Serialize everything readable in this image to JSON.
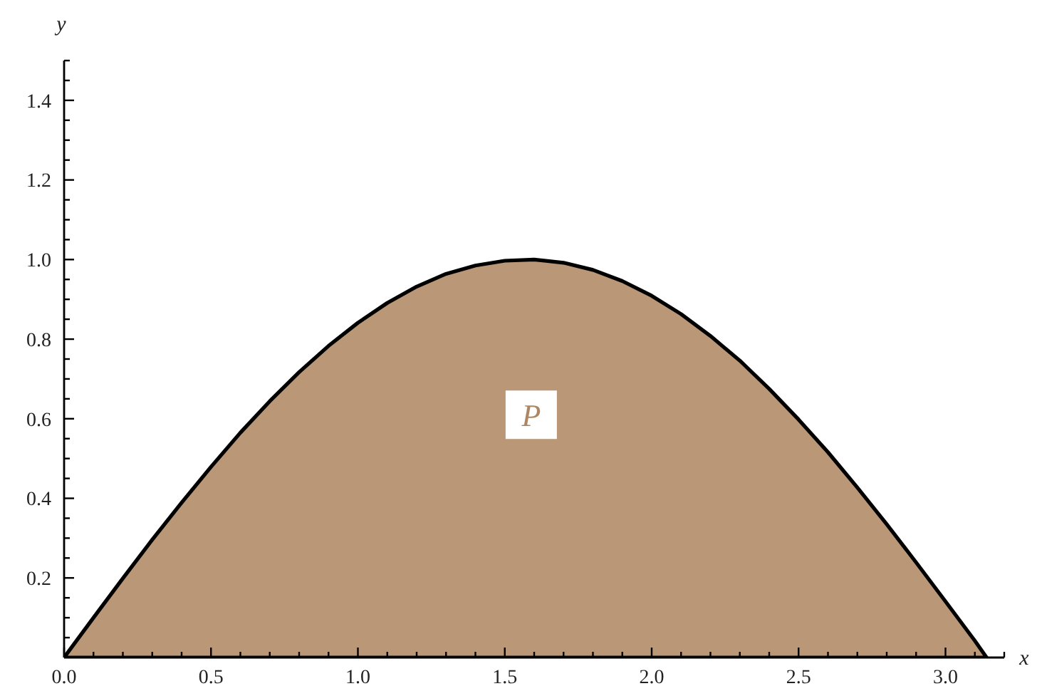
{
  "chart_data": {
    "type": "area",
    "xlabel": "x",
    "ylabel": "y",
    "x": [
      0,
      0.1,
      0.2,
      0.3,
      0.4,
      0.5,
      0.6,
      0.7,
      0.8,
      0.9,
      1.0,
      1.1,
      1.2,
      1.3,
      1.4,
      1.5,
      1.6,
      1.7,
      1.8,
      1.9,
      2.0,
      2.1,
      2.2,
      2.3,
      2.4,
      2.5,
      2.6,
      2.7,
      2.8,
      2.9,
      3.0,
      3.1,
      3.14
    ],
    "series": [
      {
        "color": "#b99777",
        "values": [
          0,
          0.1,
          0.199,
          0.296,
          0.389,
          0.479,
          0.565,
          0.644,
          0.717,
          0.783,
          0.841,
          0.891,
          0.932,
          0.964,
          0.985,
          0.997,
          1.0,
          0.992,
          0.974,
          0.946,
          0.909,
          0.863,
          0.808,
          0.746,
          0.675,
          0.598,
          0.516,
          0.427,
          0.335,
          0.239,
          0.141,
          0.042,
          0
        ]
      }
    ],
    "xlim": [
      0,
      3.2
    ],
    "ylim": [
      0,
      1.5
    ],
    "xticks": [
      {
        "value": 0,
        "label": "0.0"
      },
      {
        "value": 0.1,
        "label": null
      },
      {
        "value": 0.2,
        "label": null
      },
      {
        "value": 0.3,
        "label": null
      },
      {
        "value": 0.4,
        "label": null
      },
      {
        "value": 0.5,
        "label": "0.5"
      },
      {
        "value": 0.6,
        "label": null
      },
      {
        "value": 0.7,
        "label": null
      },
      {
        "value": 0.8,
        "label": null
      },
      {
        "value": 0.9,
        "label": null
      },
      {
        "value": 1.0,
        "label": "1.0"
      },
      {
        "value": 1.1,
        "label": null
      },
      {
        "value": 1.2,
        "label": null
      },
      {
        "value": 1.3,
        "label": null
      },
      {
        "value": 1.4,
        "label": null
      },
      {
        "value": 1.5,
        "label": "1.5"
      },
      {
        "value": 1.6,
        "label": null
      },
      {
        "value": 1.7,
        "label": null
      },
      {
        "value": 1.8,
        "label": null
      },
      {
        "value": 1.9,
        "label": null
      },
      {
        "value": 2.0,
        "label": "2.0"
      },
      {
        "value": 2.1,
        "label": null
      },
      {
        "value": 2.2,
        "label": null
      },
      {
        "value": 2.3,
        "label": null
      },
      {
        "value": 2.4,
        "label": null
      },
      {
        "value": 2.5,
        "label": "2.5"
      },
      {
        "value": 2.6,
        "label": null
      },
      {
        "value": 2.7,
        "label": null
      },
      {
        "value": 2.8,
        "label": null
      },
      {
        "value": 2.9,
        "label": null
      },
      {
        "value": 3.0,
        "label": "3.0"
      },
      {
        "value": 3.1,
        "label": null
      },
      {
        "value": 3.2,
        "label": null
      }
    ],
    "yticks": [
      {
        "value": 0.05,
        "label": null
      },
      {
        "value": 0.1,
        "label": null
      },
      {
        "value": 0.15,
        "label": null
      },
      {
        "value": 0.2,
        "label": "0.2"
      },
      {
        "value": 0.25,
        "label": null
      },
      {
        "value": 0.3,
        "label": null
      },
      {
        "value": 0.35,
        "label": null
      },
      {
        "value": 0.4,
        "label": "0.4"
      },
      {
        "value": 0.45,
        "label": null
      },
      {
        "value": 0.5,
        "label": null
      },
      {
        "value": 0.55,
        "label": null
      },
      {
        "value": 0.6,
        "label": "0.6"
      },
      {
        "value": 0.65,
        "label": null
      },
      {
        "value": 0.7,
        "label": null
      },
      {
        "value": 0.75,
        "label": null
      },
      {
        "value": 0.8,
        "label": "0.8"
      },
      {
        "value": 0.85,
        "label": null
      },
      {
        "value": 0.9,
        "label": null
      },
      {
        "value": 0.95,
        "label": null
      },
      {
        "value": 1.0,
        "label": "1.0"
      },
      {
        "value": 1.05,
        "label": null
      },
      {
        "value": 1.1,
        "label": null
      },
      {
        "value": 1.15,
        "label": null
      },
      {
        "value": 1.2,
        "label": "1.2"
      },
      {
        "value": 1.25,
        "label": null
      },
      {
        "value": 1.3,
        "label": null
      },
      {
        "value": 1.35,
        "label": null
      },
      {
        "value": 1.4,
        "label": "1.4"
      },
      {
        "value": 1.45,
        "label": null
      },
      {
        "value": 1.5,
        "label": null
      }
    ],
    "annotations": [
      {
        "text": "P",
        "x": 1.59,
        "y": 0.61
      }
    ]
  }
}
